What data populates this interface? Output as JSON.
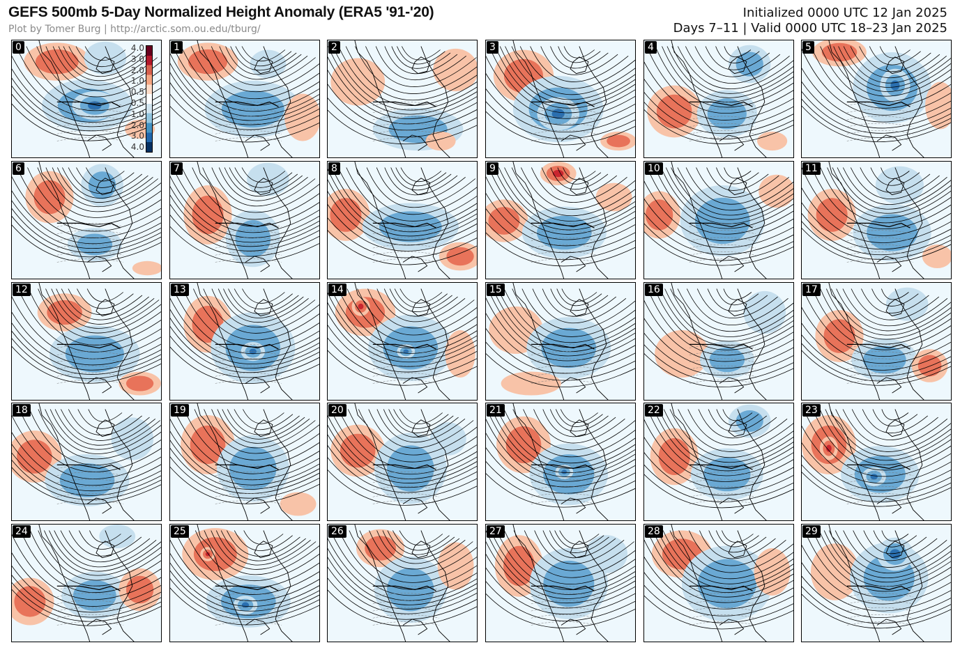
{
  "header": {
    "title": "GEFS 500mb 5-Day Normalized Height Anomaly (ERA5 '91-'20)",
    "subtitle": "Plot by Tomer Burg | http://arctic.som.ou.edu/tburg/",
    "initialized": "Initialized 0000 UTC 12 Jan 2025",
    "valid": "Days 7–11 | Valid 0000 UTC 18–23 Jan 2025"
  },
  "colorbar": {
    "ticks": [
      "4.0",
      "3.0",
      "2.0",
      "1.0",
      "0.5",
      "0.5",
      "1.0",
      "2.0",
      "3.0",
      "4.0"
    ],
    "colors": [
      "#67001f",
      "#b2182b",
      "#d6604d",
      "#f4a582",
      "#fddbc7",
      "#ffffff",
      "#d1e5f0",
      "#92c5de",
      "#4393c3",
      "#2166ac",
      "#053061"
    ]
  },
  "palette": {
    "pos1": "#f8c3a8",
    "pos2": "#e8735a",
    "pos3": "#c9262f",
    "neg1": "#c6dfee",
    "neg2": "#6aa9d4",
    "neg3": "#2a6fb0",
    "ocean": "#eef8fd"
  },
  "members": [
    {
      "label": "0",
      "anoms": [
        [
          0.3,
          0.18,
          0.22,
          0.16,
          2
        ],
        [
          0.5,
          0.55,
          0.3,
          0.22,
          -2
        ],
        [
          0.55,
          0.55,
          0.15,
          0.12,
          -3
        ],
        [
          0.62,
          0.15,
          0.14,
          0.14,
          -1
        ],
        [
          0.85,
          0.75,
          0.1,
          0.08,
          1
        ]
      ]
    },
    {
      "label": "1",
      "anoms": [
        [
          0.25,
          0.18,
          0.2,
          0.16,
          2
        ],
        [
          0.55,
          0.58,
          0.32,
          0.24,
          -2
        ],
        [
          0.88,
          0.65,
          0.12,
          0.2,
          1
        ],
        [
          0.65,
          0.2,
          0.12,
          0.12,
          -1
        ]
      ]
    },
    {
      "label": "2",
      "anoms": [
        [
          0.2,
          0.35,
          0.18,
          0.2,
          1
        ],
        [
          0.6,
          0.75,
          0.3,
          0.18,
          -2
        ],
        [
          0.85,
          0.25,
          0.15,
          0.18,
          1
        ],
        [
          0.75,
          0.85,
          0.1,
          0.08,
          1
        ]
      ]
    },
    {
      "label": "3",
      "anoms": [
        [
          0.25,
          0.3,
          0.2,
          0.22,
          2
        ],
        [
          0.48,
          0.58,
          0.3,
          0.28,
          -2
        ],
        [
          0.48,
          0.62,
          0.14,
          0.14,
          -3
        ],
        [
          0.88,
          0.85,
          0.12,
          0.08,
          2
        ]
      ]
    },
    {
      "label": "4",
      "anoms": [
        [
          0.2,
          0.6,
          0.18,
          0.22,
          2
        ],
        [
          0.55,
          0.62,
          0.2,
          0.2,
          -2
        ],
        [
          0.7,
          0.2,
          0.14,
          0.16,
          -2
        ],
        [
          0.85,
          0.85,
          0.1,
          0.08,
          1
        ]
      ]
    },
    {
      "label": "5",
      "anoms": [
        [
          0.25,
          0.1,
          0.18,
          0.12,
          2
        ],
        [
          0.6,
          0.4,
          0.26,
          0.3,
          -2
        ],
        [
          0.62,
          0.38,
          0.1,
          0.14,
          -3
        ],
        [
          0.92,
          0.55,
          0.1,
          0.2,
          1
        ]
      ]
    },
    {
      "label": "6",
      "anoms": [
        [
          0.25,
          0.3,
          0.16,
          0.22,
          2
        ],
        [
          0.55,
          0.7,
          0.18,
          0.14,
          -2
        ],
        [
          0.6,
          0.2,
          0.14,
          0.18,
          -2
        ],
        [
          0.9,
          0.9,
          0.1,
          0.06,
          1
        ]
      ]
    },
    {
      "label": "7",
      "anoms": [
        [
          0.25,
          0.45,
          0.16,
          0.25,
          2
        ],
        [
          0.55,
          0.65,
          0.18,
          0.24,
          -2
        ],
        [
          0.65,
          0.15,
          0.14,
          0.14,
          -1
        ]
      ]
    },
    {
      "label": "8",
      "anoms": [
        [
          0.12,
          0.45,
          0.16,
          0.22,
          2
        ],
        [
          0.55,
          0.55,
          0.32,
          0.2,
          -2
        ],
        [
          0.88,
          0.8,
          0.14,
          0.12,
          2
        ]
      ]
    },
    {
      "label": "9",
      "anoms": [
        [
          0.12,
          0.5,
          0.16,
          0.18,
          2
        ],
        [
          0.52,
          0.6,
          0.28,
          0.22,
          -2
        ],
        [
          0.48,
          0.1,
          0.12,
          0.1,
          3
        ],
        [
          0.85,
          0.3,
          0.12,
          0.12,
          1
        ]
      ]
    },
    {
      "label": "10",
      "anoms": [
        [
          0.1,
          0.45,
          0.14,
          0.2,
          2
        ],
        [
          0.52,
          0.5,
          0.28,
          0.3,
          -2
        ],
        [
          0.88,
          0.25,
          0.12,
          0.14,
          1
        ]
      ]
    },
    {
      "label": "11",
      "anoms": [
        [
          0.2,
          0.45,
          0.16,
          0.22,
          2
        ],
        [
          0.6,
          0.6,
          0.26,
          0.24,
          -2
        ],
        [
          0.65,
          0.2,
          0.16,
          0.16,
          -1
        ],
        [
          0.9,
          0.8,
          0.1,
          0.1,
          1
        ]
      ]
    },
    {
      "label": "12",
      "anoms": [
        [
          0.35,
          0.25,
          0.18,
          0.16,
          2
        ],
        [
          0.55,
          0.6,
          0.3,
          0.24,
          -2
        ],
        [
          0.85,
          0.85,
          0.14,
          0.1,
          2
        ]
      ]
    },
    {
      "label": "13",
      "anoms": [
        [
          0.25,
          0.35,
          0.16,
          0.24,
          2
        ],
        [
          0.55,
          0.55,
          0.28,
          0.3,
          -2
        ],
        [
          0.55,
          0.58,
          0.08,
          0.08,
          -3
        ]
      ]
    },
    {
      "label": "14",
      "anoms": [
        [
          0.25,
          0.25,
          0.2,
          0.2,
          2
        ],
        [
          0.22,
          0.2,
          0.06,
          0.08,
          3
        ],
        [
          0.55,
          0.55,
          0.28,
          0.28,
          -2
        ],
        [
          0.52,
          0.58,
          0.06,
          0.06,
          -3
        ],
        [
          0.88,
          0.6,
          0.1,
          0.2,
          1
        ]
      ]
    },
    {
      "label": "15",
      "anoms": [
        [
          0.2,
          0.4,
          0.18,
          0.2,
          1
        ],
        [
          0.55,
          0.55,
          0.28,
          0.26,
          -2
        ],
        [
          0.3,
          0.85,
          0.2,
          0.1,
          1
        ]
      ]
    },
    {
      "label": "16",
      "anoms": [
        [
          0.25,
          0.6,
          0.18,
          0.2,
          1
        ],
        [
          0.55,
          0.65,
          0.18,
          0.16,
          -2
        ],
        [
          0.8,
          0.25,
          0.14,
          0.18,
          -1
        ]
      ]
    },
    {
      "label": "17",
      "anoms": [
        [
          0.25,
          0.45,
          0.16,
          0.22,
          2
        ],
        [
          0.55,
          0.65,
          0.22,
          0.18,
          -2
        ],
        [
          0.85,
          0.7,
          0.12,
          0.14,
          2
        ],
        [
          0.7,
          0.18,
          0.14,
          0.14,
          -1
        ]
      ]
    },
    {
      "label": "18",
      "anoms": [
        [
          0.15,
          0.45,
          0.18,
          0.22,
          2
        ],
        [
          0.5,
          0.65,
          0.28,
          0.22,
          -2
        ],
        [
          0.8,
          0.3,
          0.14,
          0.18,
          -1
        ]
      ]
    },
    {
      "label": "19",
      "anoms": [
        [
          0.25,
          0.35,
          0.18,
          0.25,
          2
        ],
        [
          0.55,
          0.55,
          0.24,
          0.28,
          -2
        ],
        [
          0.85,
          0.85,
          0.12,
          0.1,
          1
        ]
      ]
    },
    {
      "label": "20",
      "anoms": [
        [
          0.2,
          0.4,
          0.18,
          0.22,
          2
        ],
        [
          0.55,
          0.55,
          0.24,
          0.3,
          -2
        ],
        [
          0.8,
          0.3,
          0.12,
          0.14,
          -1
        ]
      ]
    },
    {
      "label": "21",
      "anoms": [
        [
          0.25,
          0.35,
          0.18,
          0.24,
          2
        ],
        [
          0.55,
          0.6,
          0.26,
          0.26,
          -2
        ],
        [
          0.52,
          0.58,
          0.06,
          0.06,
          -3
        ]
      ]
    },
    {
      "label": "22",
      "anoms": [
        [
          0.2,
          0.45,
          0.16,
          0.24,
          2
        ],
        [
          0.55,
          0.6,
          0.24,
          0.22,
          -2
        ],
        [
          0.7,
          0.15,
          0.14,
          0.14,
          -2
        ]
      ]
    },
    {
      "label": "23",
      "anoms": [
        [
          0.18,
          0.35,
          0.18,
          0.25,
          2
        ],
        [
          0.18,
          0.38,
          0.06,
          0.1,
          3
        ],
        [
          0.52,
          0.6,
          0.26,
          0.24,
          -2
        ],
        [
          0.48,
          0.62,
          0.08,
          0.08,
          -3
        ]
      ]
    },
    {
      "label": "24",
      "anoms": [
        [
          0.12,
          0.65,
          0.16,
          0.2,
          2
        ],
        [
          0.55,
          0.6,
          0.22,
          0.2,
          -2
        ],
        [
          0.85,
          0.55,
          0.14,
          0.18,
          2
        ],
        [
          0.7,
          0.1,
          0.12,
          0.1,
          -1
        ]
      ]
    },
    {
      "label": "25",
      "anoms": [
        [
          0.3,
          0.25,
          0.22,
          0.22,
          2
        ],
        [
          0.25,
          0.25,
          0.05,
          0.06,
          3
        ],
        [
          0.52,
          0.65,
          0.28,
          0.22,
          -2
        ],
        [
          0.5,
          0.68,
          0.08,
          0.08,
          -3
        ]
      ]
    },
    {
      "label": "26",
      "anoms": [
        [
          0.35,
          0.2,
          0.16,
          0.16,
          2
        ],
        [
          0.55,
          0.55,
          0.24,
          0.28,
          -2
        ],
        [
          0.85,
          0.35,
          0.12,
          0.2,
          1
        ]
      ]
    },
    {
      "label": "27",
      "anoms": [
        [
          0.22,
          0.35,
          0.16,
          0.26,
          2
        ],
        [
          0.55,
          0.5,
          0.26,
          0.3,
          -2
        ],
        [
          0.8,
          0.25,
          0.14,
          0.16,
          -1
        ]
      ]
    },
    {
      "label": "28",
      "anoms": [
        [
          0.25,
          0.25,
          0.2,
          0.2,
          2
        ],
        [
          0.55,
          0.5,
          0.3,
          0.32,
          -2
        ],
        [
          0.85,
          0.4,
          0.12,
          0.2,
          1
        ]
      ]
    },
    {
      "label": "29",
      "anoms": [
        [
          0.22,
          0.4,
          0.16,
          0.24,
          1
        ],
        [
          0.58,
          0.45,
          0.26,
          0.3,
          -2
        ],
        [
          0.62,
          0.25,
          0.12,
          0.14,
          -3
        ]
      ]
    }
  ]
}
